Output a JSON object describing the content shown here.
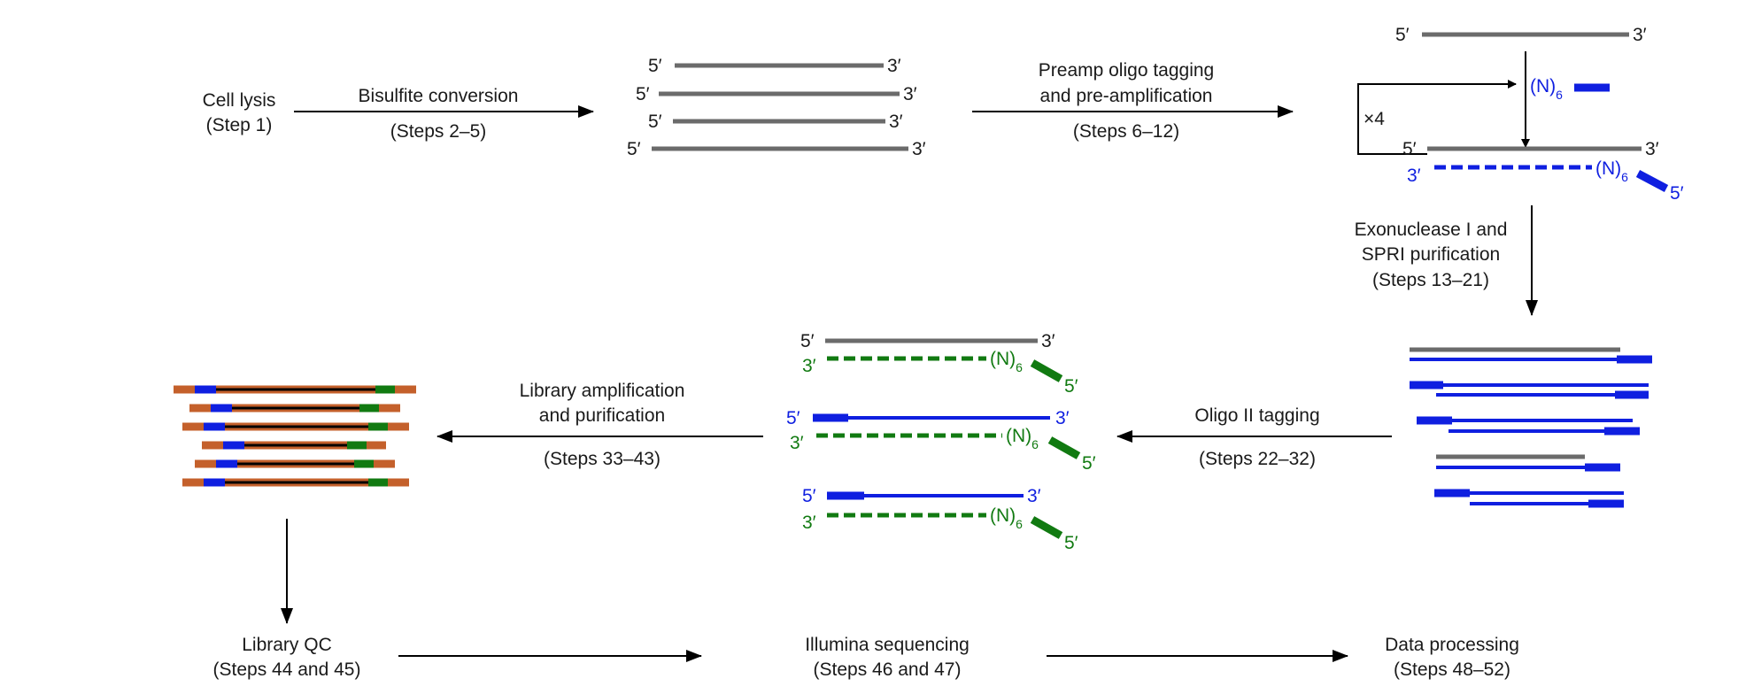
{
  "colors": {
    "text": "#1a1a1a",
    "arrow": "#000000",
    "dna": "#6b6b6b",
    "oligo1": "#0f1fe0",
    "oligo2": "#117a11",
    "adapter": "#c4602b",
    "library": "#000000"
  },
  "icons": {
    "arrow": "arrow-icon",
    "dna_strand": "dna-strand-icon",
    "primer": "primer-icon",
    "loop": "repeat-loop-icon"
  },
  "end_labels": {
    "five": "5′",
    "three": "3′"
  },
  "primer_label": {
    "n": "(N)",
    "sub": "6"
  },
  "repeat_label": "×4",
  "steps": {
    "cell_lysis": {
      "title": "Cell lysis",
      "steps": "(Step 1)"
    },
    "bisulfite": {
      "title": "Bisulfite conversion",
      "steps": "(Steps 2–5)"
    },
    "preamp": {
      "line1": "Preamp oligo tagging",
      "line2": "and pre-amplification",
      "steps": "(Steps 6–12)"
    },
    "exonuclease": {
      "line1": "Exonuclease I and",
      "line2": "SPRI purification",
      "steps": "(Steps 13–21)"
    },
    "oligo2": {
      "title": "Oligo II tagging",
      "steps": "(Steps 22–32)"
    },
    "library_amp": {
      "line1": "Library amplification",
      "line2": "and purification",
      "steps": "(Steps 33–43)"
    },
    "library_qc": {
      "title": "Library QC",
      "steps": "(Steps 44 and 45)"
    },
    "sequencing": {
      "title": "Illumina sequencing",
      "steps": "(Steps 46 and 47)"
    },
    "data_processing": {
      "title": "Data processing",
      "steps": "(Steps 48–52)"
    }
  }
}
